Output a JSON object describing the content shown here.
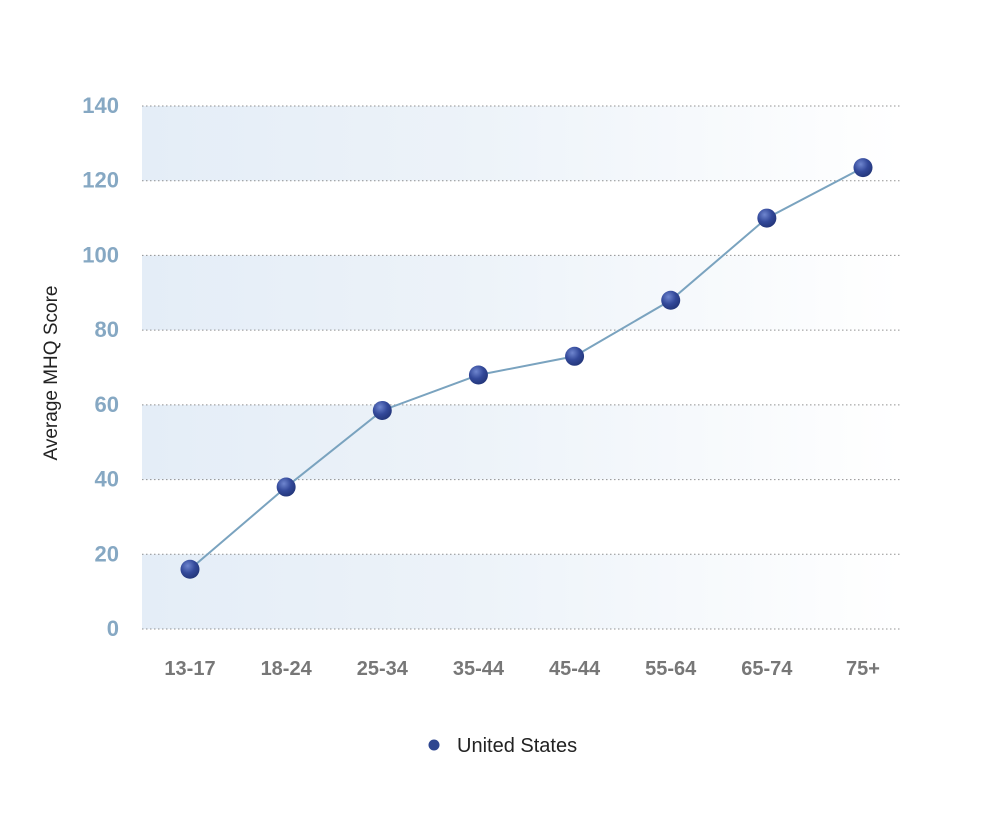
{
  "chart_data": {
    "type": "line",
    "title": "",
    "xlabel": "",
    "ylabel": "Average MHQ Score",
    "categories": [
      "13-17",
      "18-24",
      "25-34",
      "35-44",
      "45-44",
      "55-64",
      "65-74",
      "75+"
    ],
    "series": [
      {
        "name": "United States",
        "values": [
          16,
          38,
          58.5,
          68,
          73,
          88,
          110,
          123.5
        ]
      }
    ],
    "ylim": [
      0,
      140
    ],
    "yticks": [
      0,
      20,
      40,
      60,
      80,
      100,
      120,
      140
    ],
    "grid": true,
    "legend_position": "bottom-center"
  },
  "colors": {
    "line": "#7aa3bf",
    "marker": "#2e4690",
    "marker_highlight": "#6f86cf",
    "tick_y": "#86a8c3",
    "tick_x": "#777777",
    "band": "#e6eef8",
    "gridline": "#666666"
  }
}
